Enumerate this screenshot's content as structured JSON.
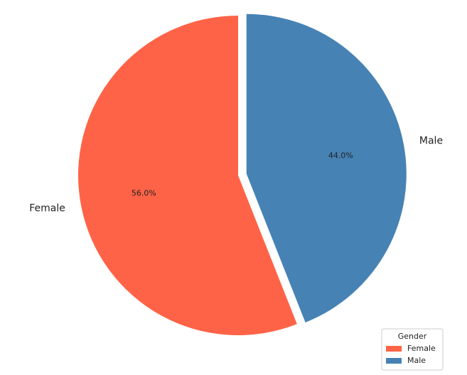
{
  "chart_data": {
    "type": "pie",
    "categories": [
      "Female",
      "Male"
    ],
    "values": [
      56.0,
      44.0
    ],
    "value_labels": [
      "56.0%",
      "44.0%"
    ],
    "colors": [
      "#ff6347",
      "#4682b4"
    ],
    "legend_title": "Gender",
    "legend": "lower right"
  }
}
